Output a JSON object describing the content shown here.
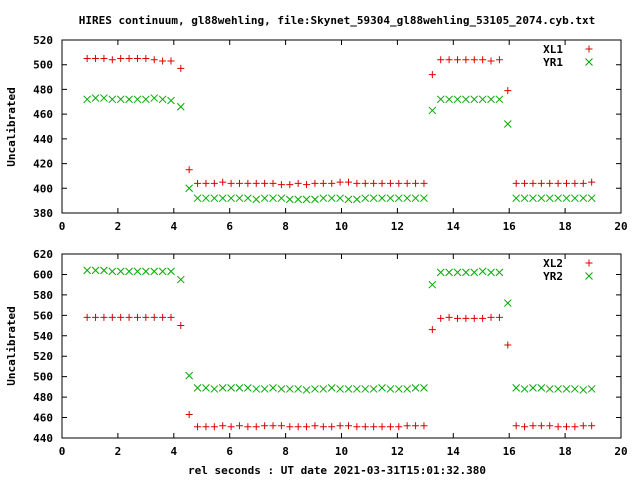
{
  "title": "HIRES continuum, gl88wehling, file:Skynet_59304_gl88wehling_53105_2074.cyb.txt",
  "xlabel": "rel seconds : UT date 2021-03-31T15:01:32.380",
  "colors": {
    "red": "#dd0000",
    "green": "#00aa00"
  },
  "chart_data": [
    {
      "type": "scatter",
      "ylabel": "Uncalibrated",
      "xlim": [
        0,
        20
      ],
      "ylim": [
        380,
        520
      ],
      "xticks": [
        0,
        2,
        4,
        6,
        8,
        10,
        12,
        14,
        16,
        18,
        20
      ],
      "yticks": [
        380,
        400,
        420,
        440,
        460,
        480,
        500,
        520
      ],
      "legend_position": "top-right",
      "series": [
        {
          "name": "XL1",
          "marker": "plus",
          "color": "#dd0000",
          "points": [
            [
              0.9,
              505
            ],
            [
              1.2,
              505
            ],
            [
              1.5,
              505
            ],
            [
              1.8,
              504
            ],
            [
              2.1,
              505
            ],
            [
              2.4,
              505
            ],
            [
              2.7,
              505
            ],
            [
              3.0,
              505
            ],
            [
              3.3,
              504
            ],
            [
              3.6,
              503
            ],
            [
              3.9,
              503
            ],
            [
              4.25,
              497
            ],
            [
              4.55,
              415
            ],
            [
              4.85,
              404
            ],
            [
              5.15,
              404
            ],
            [
              5.45,
              404
            ],
            [
              5.75,
              405
            ],
            [
              6.05,
              404
            ],
            [
              6.35,
              404
            ],
            [
              6.65,
              404
            ],
            [
              6.95,
              404
            ],
            [
              7.25,
              404
            ],
            [
              7.55,
              404
            ],
            [
              7.85,
              403
            ],
            [
              8.15,
              403
            ],
            [
              8.45,
              404
            ],
            [
              8.75,
              403
            ],
            [
              9.05,
              404
            ],
            [
              9.35,
              404
            ],
            [
              9.65,
              404
            ],
            [
              9.95,
              405
            ],
            [
              10.25,
              405
            ],
            [
              10.55,
              404
            ],
            [
              10.85,
              404
            ],
            [
              11.15,
              404
            ],
            [
              11.45,
              404
            ],
            [
              11.75,
              404
            ],
            [
              12.05,
              404
            ],
            [
              12.35,
              404
            ],
            [
              12.65,
              404
            ],
            [
              12.95,
              404
            ],
            [
              13.25,
              492
            ],
            [
              13.55,
              504
            ],
            [
              13.85,
              504
            ],
            [
              14.15,
              504
            ],
            [
              14.45,
              504
            ],
            [
              14.75,
              504
            ],
            [
              15.05,
              504
            ],
            [
              15.35,
              503
            ],
            [
              15.65,
              504
            ],
            [
              15.95,
              479
            ],
            [
              16.25,
              404
            ],
            [
              16.55,
              404
            ],
            [
              16.85,
              404
            ],
            [
              17.15,
              404
            ],
            [
              17.45,
              404
            ],
            [
              17.75,
              404
            ],
            [
              18.05,
              404
            ],
            [
              18.35,
              404
            ],
            [
              18.65,
              404
            ],
            [
              18.95,
              405
            ]
          ]
        },
        {
          "name": "YR1",
          "marker": "cross",
          "color": "#00aa00",
          "points": [
            [
              0.9,
              472
            ],
            [
              1.2,
              473
            ],
            [
              1.5,
              473
            ],
            [
              1.8,
              472
            ],
            [
              2.1,
              472
            ],
            [
              2.4,
              472
            ],
            [
              2.7,
              472
            ],
            [
              3.0,
              472
            ],
            [
              3.3,
              473
            ],
            [
              3.6,
              472
            ],
            [
              3.9,
              471
            ],
            [
              4.25,
              466
            ],
            [
              4.55,
              400
            ],
            [
              4.85,
              392
            ],
            [
              5.15,
              392
            ],
            [
              5.45,
              392
            ],
            [
              5.75,
              392
            ],
            [
              6.05,
              392
            ],
            [
              6.35,
              392
            ],
            [
              6.65,
              392
            ],
            [
              6.95,
              391
            ],
            [
              7.25,
              392
            ],
            [
              7.55,
              392
            ],
            [
              7.85,
              392
            ],
            [
              8.15,
              391
            ],
            [
              8.45,
              391
            ],
            [
              8.75,
              391
            ],
            [
              9.05,
              391
            ],
            [
              9.35,
              392
            ],
            [
              9.65,
              392
            ],
            [
              9.95,
              392
            ],
            [
              10.25,
              391
            ],
            [
              10.55,
              391
            ],
            [
              10.85,
              392
            ],
            [
              11.15,
              392
            ],
            [
              11.45,
              392
            ],
            [
              11.75,
              392
            ],
            [
              12.05,
              392
            ],
            [
              12.35,
              392
            ],
            [
              12.65,
              392
            ],
            [
              12.95,
              392
            ],
            [
              13.25,
              463
            ],
            [
              13.55,
              472
            ],
            [
              13.85,
              472
            ],
            [
              14.15,
              472
            ],
            [
              14.45,
              472
            ],
            [
              14.75,
              472
            ],
            [
              15.05,
              472
            ],
            [
              15.35,
              472
            ],
            [
              15.65,
              472
            ],
            [
              15.95,
              452
            ],
            [
              16.25,
              392
            ],
            [
              16.55,
              392
            ],
            [
              16.85,
              392
            ],
            [
              17.15,
              392
            ],
            [
              17.45,
              392
            ],
            [
              17.75,
              392
            ],
            [
              18.05,
              392
            ],
            [
              18.35,
              392
            ],
            [
              18.65,
              392
            ],
            [
              18.95,
              392
            ]
          ]
        }
      ]
    },
    {
      "type": "scatter",
      "ylabel": "Uncalibrated",
      "xlim": [
        0,
        20
      ],
      "ylim": [
        440,
        620
      ],
      "xticks": [
        0,
        2,
        4,
        6,
        8,
        10,
        12,
        14,
        16,
        18,
        20
      ],
      "yticks": [
        440,
        460,
        480,
        500,
        520,
        540,
        560,
        580,
        600,
        620
      ],
      "legend_position": "top-right",
      "series": [
        {
          "name": "XL2",
          "marker": "plus",
          "color": "#dd0000",
          "points": [
            [
              0.9,
              558
            ],
            [
              1.2,
              558
            ],
            [
              1.5,
              558
            ],
            [
              1.8,
              558
            ],
            [
              2.1,
              558
            ],
            [
              2.4,
              558
            ],
            [
              2.7,
              558
            ],
            [
              3.0,
              558
            ],
            [
              3.3,
              558
            ],
            [
              3.6,
              558
            ],
            [
              3.9,
              558
            ],
            [
              4.25,
              550
            ],
            [
              4.55,
              463
            ],
            [
              4.85,
              451
            ],
            [
              5.15,
              451
            ],
            [
              5.45,
              451
            ],
            [
              5.75,
              452
            ],
            [
              6.05,
              451
            ],
            [
              6.35,
              452
            ],
            [
              6.65,
              451
            ],
            [
              6.95,
              451
            ],
            [
              7.25,
              452
            ],
            [
              7.55,
              452
            ],
            [
              7.85,
              452
            ],
            [
              8.15,
              451
            ],
            [
              8.45,
              451
            ],
            [
              8.75,
              451
            ],
            [
              9.05,
              452
            ],
            [
              9.35,
              451
            ],
            [
              9.65,
              451
            ],
            [
              9.95,
              452
            ],
            [
              10.25,
              452
            ],
            [
              10.55,
              451
            ],
            [
              10.85,
              451
            ],
            [
              11.15,
              451
            ],
            [
              11.45,
              451
            ],
            [
              11.75,
              451
            ],
            [
              12.05,
              451
            ],
            [
              12.35,
              452
            ],
            [
              12.65,
              452
            ],
            [
              12.95,
              452
            ],
            [
              13.25,
              546
            ],
            [
              13.55,
              557
            ],
            [
              13.85,
              558
            ],
            [
              14.15,
              557
            ],
            [
              14.45,
              557
            ],
            [
              14.75,
              557
            ],
            [
              15.05,
              557
            ],
            [
              15.35,
              558
            ],
            [
              15.65,
              558
            ],
            [
              15.95,
              531
            ],
            [
              16.25,
              452
            ],
            [
              16.55,
              451
            ],
            [
              16.85,
              452
            ],
            [
              17.15,
              452
            ],
            [
              17.45,
              452
            ],
            [
              17.75,
              451
            ],
            [
              18.05,
              451
            ],
            [
              18.35,
              451
            ],
            [
              18.65,
              452
            ],
            [
              18.95,
              452
            ]
          ]
        },
        {
          "name": "YR2",
          "marker": "cross",
          "color": "#00aa00",
          "points": [
            [
              0.9,
              604
            ],
            [
              1.2,
              604
            ],
            [
              1.5,
              604
            ],
            [
              1.8,
              603
            ],
            [
              2.1,
              603
            ],
            [
              2.4,
              603
            ],
            [
              2.7,
              603
            ],
            [
              3.0,
              603
            ],
            [
              3.3,
              603
            ],
            [
              3.6,
              603
            ],
            [
              3.9,
              603
            ],
            [
              4.25,
              595
            ],
            [
              4.55,
              501
            ],
            [
              4.85,
              489
            ],
            [
              5.15,
              489
            ],
            [
              5.45,
              488
            ],
            [
              5.75,
              489
            ],
            [
              6.05,
              489
            ],
            [
              6.35,
              489
            ],
            [
              6.65,
              489
            ],
            [
              6.95,
              488
            ],
            [
              7.25,
              488
            ],
            [
              7.55,
              489
            ],
            [
              7.85,
              488
            ],
            [
              8.15,
              488
            ],
            [
              8.45,
              488
            ],
            [
              8.75,
              487
            ],
            [
              9.05,
              488
            ],
            [
              9.35,
              488
            ],
            [
              9.65,
              489
            ],
            [
              9.95,
              488
            ],
            [
              10.25,
              488
            ],
            [
              10.55,
              488
            ],
            [
              10.85,
              488
            ],
            [
              11.15,
              488
            ],
            [
              11.45,
              489
            ],
            [
              11.75,
              488
            ],
            [
              12.05,
              488
            ],
            [
              12.35,
              488
            ],
            [
              12.65,
              489
            ],
            [
              12.95,
              489
            ],
            [
              13.25,
              590
            ],
            [
              13.55,
              602
            ],
            [
              13.85,
              602
            ],
            [
              14.15,
              602
            ],
            [
              14.45,
              602
            ],
            [
              14.75,
              602
            ],
            [
              15.05,
              603
            ],
            [
              15.35,
              602
            ],
            [
              15.65,
              602
            ],
            [
              15.95,
              572
            ],
            [
              16.25,
              489
            ],
            [
              16.55,
              488
            ],
            [
              16.85,
              489
            ],
            [
              17.15,
              489
            ],
            [
              17.45,
              488
            ],
            [
              17.75,
              488
            ],
            [
              18.05,
              488
            ],
            [
              18.35,
              488
            ],
            [
              18.65,
              487
            ],
            [
              18.95,
              488
            ]
          ]
        }
      ]
    }
  ]
}
